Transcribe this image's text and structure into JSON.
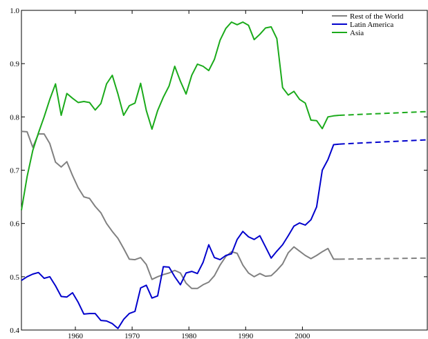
{
  "chart_data": {
    "type": "line",
    "title": "",
    "xlabel": "",
    "ylabel": "",
    "xlim": [
      1950.5,
      2022
    ],
    "ylim": [
      0.4,
      1.0
    ],
    "x_ticks": [
      1960,
      1970,
      1980,
      1990,
      2000
    ],
    "y_ticks": [
      0.4,
      0.5,
      0.6,
      0.7,
      0.8,
      0.9,
      1.0
    ],
    "grid": false,
    "legend": "top-right",
    "series": [
      {
        "name": "Rest of the World",
        "color": "#808080",
        "points": [
          [
            1950.5,
            0.773
          ],
          [
            1951.5,
            0.772
          ],
          [
            1952.5,
            0.743
          ],
          [
            1953.5,
            0.768
          ],
          [
            1954.5,
            0.768
          ],
          [
            1955.5,
            0.75
          ],
          [
            1956.5,
            0.715
          ],
          [
            1957.5,
            0.706
          ],
          [
            1958.5,
            0.716
          ],
          [
            1959.5,
            0.69
          ],
          [
            1960.5,
            0.667
          ],
          [
            1961.5,
            0.65
          ],
          [
            1962.5,
            0.647
          ],
          [
            1963.5,
            0.632
          ],
          [
            1964.5,
            0.62
          ],
          [
            1965.5,
            0.6
          ],
          [
            1966.5,
            0.585
          ],
          [
            1967.5,
            0.572
          ],
          [
            1968.5,
            0.553
          ],
          [
            1969.5,
            0.533
          ],
          [
            1970.5,
            0.532
          ],
          [
            1971.5,
            0.536
          ],
          [
            1972.5,
            0.523
          ],
          [
            1973.5,
            0.495
          ],
          [
            1974.5,
            0.5
          ],
          [
            1975.5,
            0.504
          ],
          [
            1976.5,
            0.507
          ],
          [
            1977.5,
            0.512
          ],
          [
            1978.5,
            0.507
          ],
          [
            1979.5,
            0.488
          ],
          [
            1980.5,
            0.478
          ],
          [
            1981.5,
            0.478
          ],
          [
            1982.5,
            0.485
          ],
          [
            1983.5,
            0.49
          ],
          [
            1984.5,
            0.502
          ],
          [
            1985.5,
            0.522
          ],
          [
            1986.5,
            0.538
          ],
          [
            1987.5,
            0.547
          ],
          [
            1988.5,
            0.544
          ],
          [
            1989.5,
            0.522
          ],
          [
            1990.5,
            0.507
          ],
          [
            1991.5,
            0.5
          ],
          [
            1992.5,
            0.506
          ],
          [
            1993.5,
            0.501
          ],
          [
            1994.5,
            0.502
          ],
          [
            1995.5,
            0.512
          ],
          [
            1996.5,
            0.524
          ],
          [
            1997.5,
            0.545
          ],
          [
            1998.5,
            0.556
          ],
          [
            1999.5,
            0.548
          ],
          [
            2000.5,
            0.54
          ],
          [
            2001.5,
            0.534
          ],
          [
            2002.5,
            0.54
          ],
          [
            2003.5,
            0.547
          ],
          [
            2004.5,
            0.553
          ],
          [
            2005.5,
            0.533
          ],
          [
            2006.5,
            0.533
          ]
        ],
        "projection": [
          [
            2006.5,
            0.533
          ],
          [
            2022,
            0.535
          ]
        ]
      },
      {
        "name": "Latin America",
        "color": "#0000cc",
        "points": [
          [
            1950.5,
            0.493
          ],
          [
            1951.5,
            0.5
          ],
          [
            1952.5,
            0.505
          ],
          [
            1953.5,
            0.508
          ],
          [
            1954.5,
            0.497
          ],
          [
            1955.5,
            0.5
          ],
          [
            1956.5,
            0.483
          ],
          [
            1957.5,
            0.463
          ],
          [
            1958.5,
            0.462
          ],
          [
            1959.5,
            0.47
          ],
          [
            1960.5,
            0.452
          ],
          [
            1961.5,
            0.43
          ],
          [
            1962.5,
            0.431
          ],
          [
            1963.5,
            0.431
          ],
          [
            1964.5,
            0.418
          ],
          [
            1965.5,
            0.417
          ],
          [
            1966.5,
            0.412
          ],
          [
            1967.5,
            0.403
          ],
          [
            1968.5,
            0.42
          ],
          [
            1969.5,
            0.431
          ],
          [
            1970.5,
            0.435
          ],
          [
            1971.5,
            0.479
          ],
          [
            1972.5,
            0.484
          ],
          [
            1973.5,
            0.46
          ],
          [
            1974.5,
            0.464
          ],
          [
            1975.5,
            0.519
          ],
          [
            1976.5,
            0.518
          ],
          [
            1977.5,
            0.5
          ],
          [
            1978.5,
            0.485
          ],
          [
            1979.5,
            0.507
          ],
          [
            1980.5,
            0.51
          ],
          [
            1981.5,
            0.506
          ],
          [
            1982.5,
            0.527
          ],
          [
            1983.5,
            0.56
          ],
          [
            1984.5,
            0.536
          ],
          [
            1985.5,
            0.532
          ],
          [
            1986.5,
            0.54
          ],
          [
            1987.5,
            0.543
          ],
          [
            1988.5,
            0.57
          ],
          [
            1989.5,
            0.585
          ],
          [
            1990.5,
            0.575
          ],
          [
            1991.5,
            0.57
          ],
          [
            1992.5,
            0.577
          ],
          [
            1993.5,
            0.556
          ],
          [
            1994.5,
            0.535
          ],
          [
            1995.5,
            0.548
          ],
          [
            1996.5,
            0.56
          ],
          [
            1997.5,
            0.577
          ],
          [
            1998.5,
            0.595
          ],
          [
            1999.5,
            0.601
          ],
          [
            2000.5,
            0.597
          ],
          [
            2001.5,
            0.607
          ],
          [
            2002.5,
            0.631
          ],
          [
            2003.5,
            0.7
          ],
          [
            2004.5,
            0.72
          ],
          [
            2005.5,
            0.748
          ],
          [
            2006.5,
            0.749
          ]
        ],
        "projection": [
          [
            2006.5,
            0.749
          ],
          [
            2022,
            0.757
          ]
        ]
      },
      {
        "name": "Asia",
        "color": "#1aaa1a",
        "points": [
          [
            1950.5,
            0.625
          ],
          [
            1951.5,
            0.688
          ],
          [
            1952.5,
            0.737
          ],
          [
            1953.5,
            0.77
          ],
          [
            1954.5,
            0.8
          ],
          [
            1955.5,
            0.833
          ],
          [
            1956.5,
            0.862
          ],
          [
            1957.5,
            0.803
          ],
          [
            1958.5,
            0.844
          ],
          [
            1959.5,
            0.835
          ],
          [
            1960.5,
            0.827
          ],
          [
            1961.5,
            0.829
          ],
          [
            1962.5,
            0.827
          ],
          [
            1963.5,
            0.813
          ],
          [
            1964.5,
            0.825
          ],
          [
            1965.5,
            0.862
          ],
          [
            1966.5,
            0.878
          ],
          [
            1967.5,
            0.843
          ],
          [
            1968.5,
            0.803
          ],
          [
            1969.5,
            0.821
          ],
          [
            1970.5,
            0.826
          ],
          [
            1971.5,
            0.863
          ],
          [
            1972.5,
            0.812
          ],
          [
            1973.5,
            0.777
          ],
          [
            1974.5,
            0.812
          ],
          [
            1975.5,
            0.837
          ],
          [
            1976.5,
            0.858
          ],
          [
            1977.5,
            0.895
          ],
          [
            1978.5,
            0.867
          ],
          [
            1979.5,
            0.843
          ],
          [
            1980.5,
            0.878
          ],
          [
            1981.5,
            0.899
          ],
          [
            1982.5,
            0.895
          ],
          [
            1983.5,
            0.887
          ],
          [
            1984.5,
            0.908
          ],
          [
            1985.5,
            0.944
          ],
          [
            1986.5,
            0.966
          ],
          [
            1987.5,
            0.978
          ],
          [
            1988.5,
            0.973
          ],
          [
            1989.5,
            0.978
          ],
          [
            1990.5,
            0.972
          ],
          [
            1991.5,
            0.945
          ],
          [
            1992.5,
            0.955
          ],
          [
            1993.5,
            0.967
          ],
          [
            1994.5,
            0.969
          ],
          [
            1995.5,
            0.947
          ],
          [
            1996.5,
            0.855
          ],
          [
            1997.5,
            0.841
          ],
          [
            1998.5,
            0.848
          ],
          [
            1999.5,
            0.833
          ],
          [
            2000.5,
            0.826
          ],
          [
            2001.5,
            0.794
          ],
          [
            2002.5,
            0.793
          ],
          [
            2003.5,
            0.778
          ],
          [
            2004.5,
            0.8
          ],
          [
            2005.5,
            0.802
          ],
          [
            2006.5,
            0.803
          ]
        ],
        "projection": [
          [
            2006.5,
            0.803
          ],
          [
            2022,
            0.81
          ]
        ]
      }
    ]
  }
}
